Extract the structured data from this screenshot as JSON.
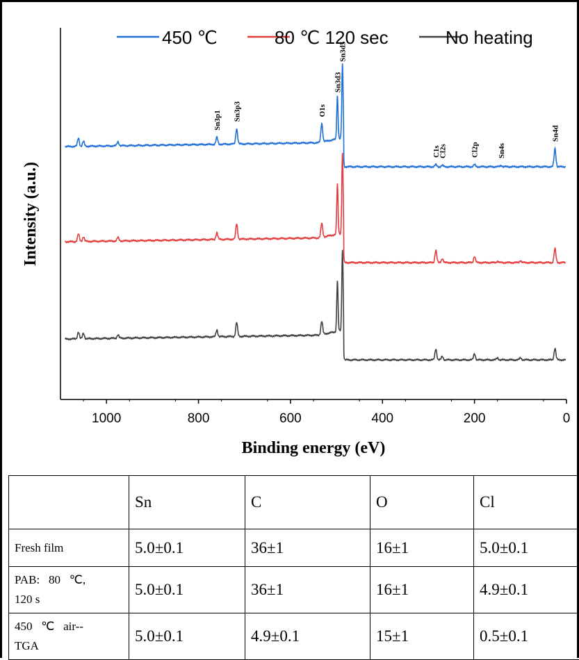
{
  "chart_data": {
    "type": "line",
    "xlabel": "Binding energy (eV)",
    "ylabel": "Intensity (a.u.)",
    "x_reversed": true,
    "xlim": [
      1100,
      0
    ],
    "x_ticks": [
      1000,
      800,
      600,
      400,
      200,
      0
    ],
    "y_ticks_shown": false,
    "grid": false,
    "legend_position": "top",
    "series": [
      {
        "name": "450 ℃",
        "color": "#1f6fd6",
        "baseline": 211,
        "tail_baseline": 240,
        "drift": 0.2,
        "peaks": [
          [
            1061,
            12
          ],
          [
            1050,
            7
          ],
          [
            975,
            6
          ],
          [
            760,
            10
          ],
          [
            717,
            22
          ],
          [
            532,
            27
          ],
          [
            498,
            62
          ],
          [
            487,
            106
          ],
          [
            284,
            3
          ],
          [
            270,
            2
          ],
          [
            200,
            3
          ],
          [
            142,
            2
          ],
          [
            25,
            26
          ]
        ]
      },
      {
        "name": "80 ℃ 120 sec",
        "color": "#e23c3c",
        "baseline": 348,
        "tail_baseline": 378,
        "drift": 0.2,
        "peaks": [
          [
            1061,
            11
          ],
          [
            1050,
            7
          ],
          [
            975,
            5
          ],
          [
            760,
            10
          ],
          [
            717,
            22
          ],
          [
            532,
            20
          ],
          [
            498,
            72
          ],
          [
            487,
            115
          ],
          [
            284,
            18
          ],
          [
            270,
            6
          ],
          [
            200,
            9
          ],
          [
            150,
            2
          ],
          [
            100,
            3
          ],
          [
            25,
            20
          ]
        ]
      },
      {
        "name": "No heating",
        "color": "#404040",
        "baseline": 488,
        "tail_baseline": 518,
        "drift": 0.2,
        "peaks": [
          [
            1061,
            10
          ],
          [
            1050,
            8
          ],
          [
            975,
            5
          ],
          [
            760,
            10
          ],
          [
            717,
            20
          ],
          [
            532,
            19
          ],
          [
            498,
            73
          ],
          [
            487,
            117
          ],
          [
            284,
            16
          ],
          [
            270,
            5
          ],
          [
            200,
            9
          ],
          [
            150,
            3
          ],
          [
            100,
            3
          ],
          [
            25,
            17
          ]
        ]
      }
    ],
    "peak_labels": [
      {
        "label": "Sn3p1",
        "x": 760
      },
      {
        "label": "Sn3p3",
        "x": 717
      },
      {
        "label": "O1s",
        "x": 532
      },
      {
        "label": "Sn3d3",
        "x": 498
      },
      {
        "label": "Sn3d5",
        "x": 487
      },
      {
        "label": "C1s",
        "x": 284
      },
      {
        "label": "Cl2s",
        "x": 270
      },
      {
        "label": "Cl2p",
        "x": 200
      },
      {
        "label": "Sn4s",
        "x": 142
      },
      {
        "label": "Sn4d",
        "x": 25
      }
    ]
  },
  "table": {
    "header": [
      "",
      "Sn",
      "C",
      "O",
      "Cl"
    ],
    "rows": [
      {
        "name_lines": [
          "Fresh film"
        ],
        "values": [
          "5.0±0.1",
          "36±1",
          "16±1",
          "5.0±0.1"
        ]
      },
      {
        "name_lines": [
          "PAB:   80   ℃,",
          "120 s"
        ],
        "values": [
          "5.0±0.1",
          "36±1",
          "16±1",
          "4.9±0.1"
        ]
      },
      {
        "name_lines": [
          "450   ℃   air--",
          "TGA"
        ],
        "values": [
          "5.0±0.1",
          "4.9±0.1",
          "15±1",
          "0.5±0.1"
        ]
      }
    ]
  }
}
